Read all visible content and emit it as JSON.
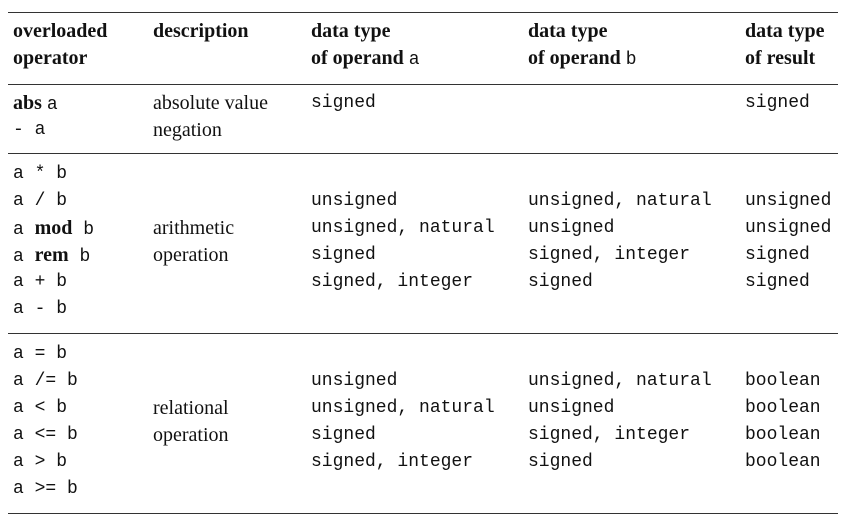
{
  "header": {
    "col1": [
      "overloaded",
      "operator"
    ],
    "col2": "description",
    "col3": {
      "line1": "data type",
      "line2_text": "of operand",
      "line2_var": "a"
    },
    "col4": {
      "line1": "data type",
      "line2_text": "of operand",
      "line2_var": "b"
    },
    "col5": [
      "data type",
      "of result"
    ]
  },
  "group1": {
    "operators": [
      {
        "keyword": "abs",
        "operand": "a"
      },
      {
        "prefix": "- ",
        "operand": "a"
      }
    ],
    "description": [
      "absolute value",
      "negation"
    ],
    "type_a": [
      "signed"
    ],
    "type_b": [],
    "result": [
      "signed"
    ]
  },
  "group2": {
    "operators": [
      {
        "text": "a * b"
      },
      {
        "text": "a / b"
      },
      {
        "left": "a",
        "keyword": "mod",
        "right": "b"
      },
      {
        "left": "a",
        "keyword": "rem",
        "right": "b"
      },
      {
        "text": "a + b"
      },
      {
        "text": "a - b"
      }
    ],
    "description": [
      "arithmetic",
      "operation"
    ],
    "type_a": [
      "unsigned",
      "unsigned, natural",
      "signed",
      "signed, integer"
    ],
    "type_b": [
      "unsigned, natural",
      "unsigned",
      "signed, integer",
      "signed"
    ],
    "result": [
      "unsigned",
      "unsigned",
      "signed",
      "signed"
    ]
  },
  "group3": {
    "operators": [
      {
        "text": "a = b"
      },
      {
        "text": "a /= b"
      },
      {
        "text": "a < b"
      },
      {
        "text": "a <= b"
      },
      {
        "text": "a > b"
      },
      {
        "text": "a >= b"
      }
    ],
    "description": [
      "relational",
      "operation"
    ],
    "type_a": [
      "unsigned",
      "unsigned, natural",
      "signed",
      "signed, integer"
    ],
    "type_b": [
      "unsigned, natural",
      "unsigned",
      "signed, integer",
      "signed"
    ],
    "result": [
      "boolean",
      "boolean",
      "boolean",
      "boolean"
    ]
  }
}
